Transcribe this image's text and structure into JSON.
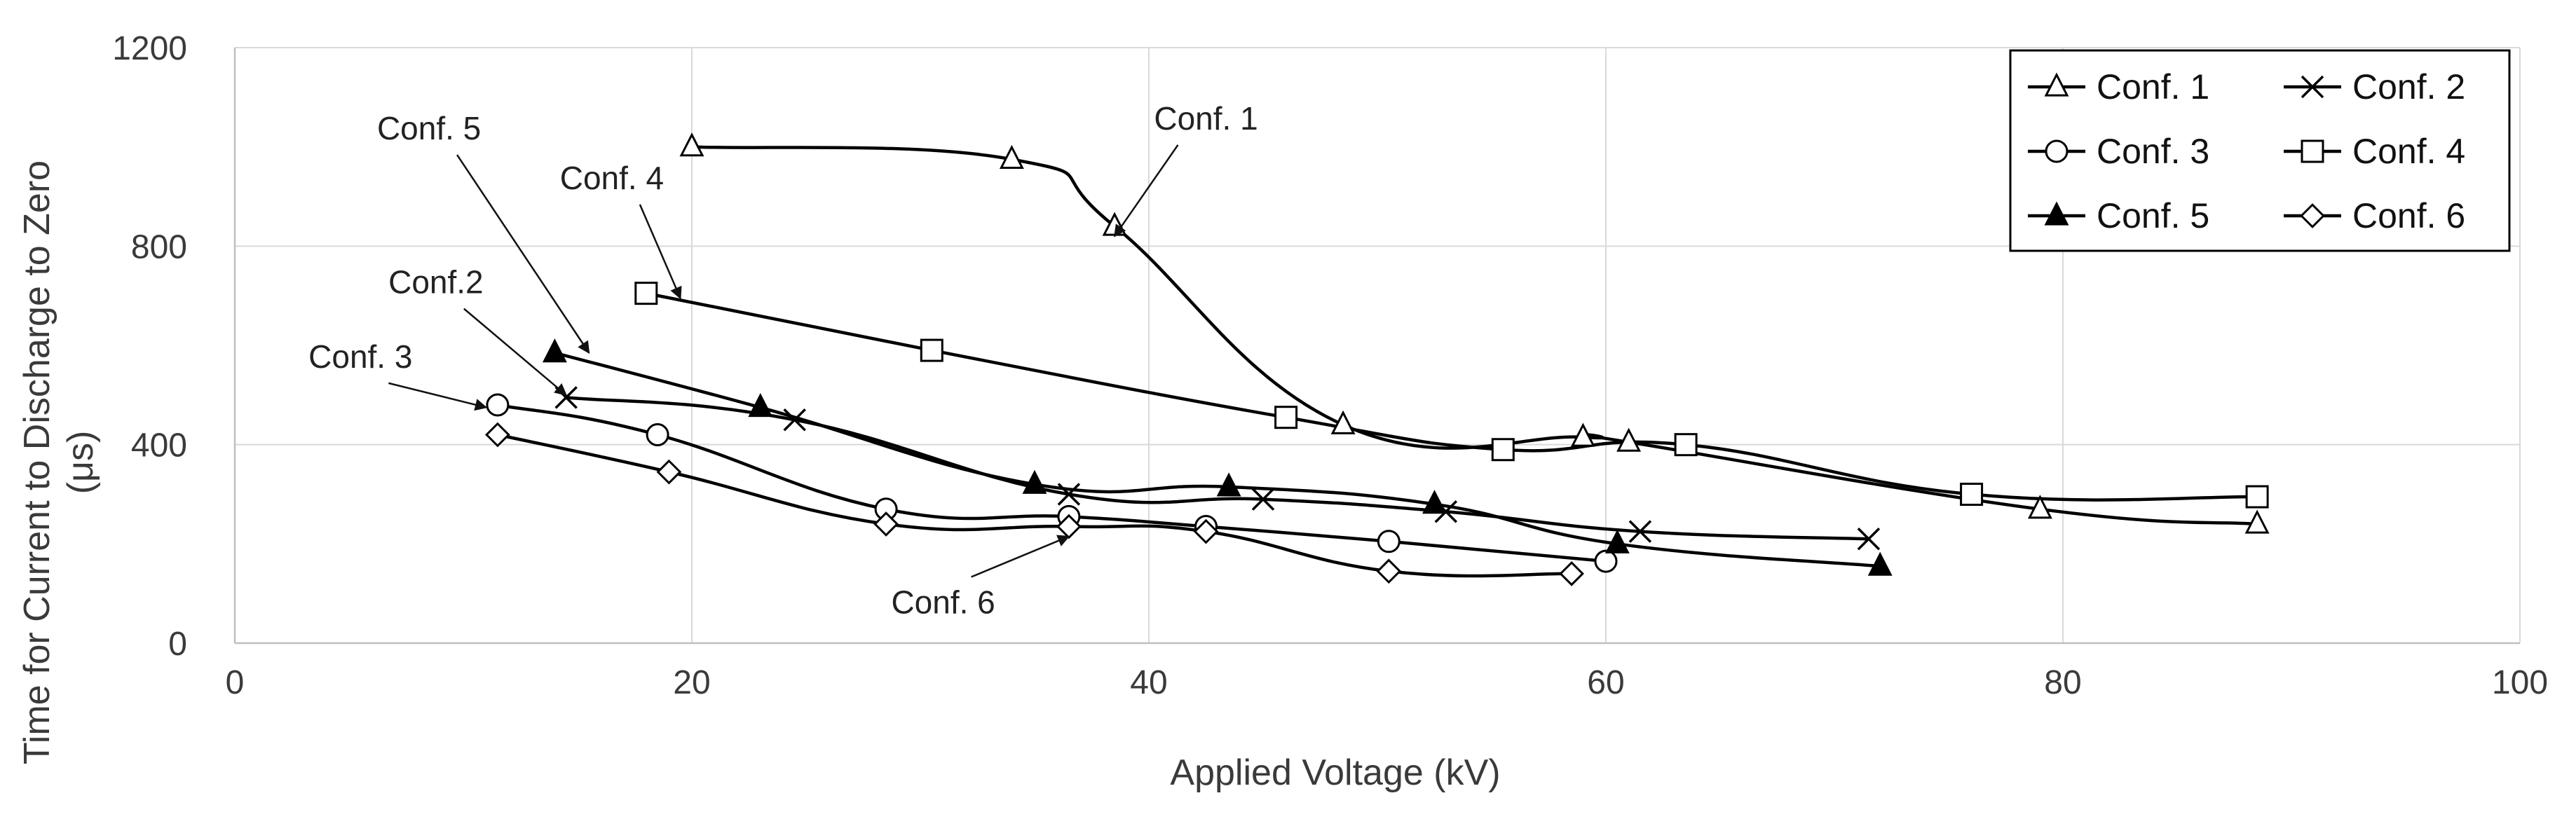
{
  "chart_data": {
    "type": "line",
    "title": "",
    "xlabel": "Applied Voltage (kV)",
    "ylabel": "Time for Current to Discharge to Zero",
    "ylabel_unit": "(μs)",
    "xlim": [
      0,
      100
    ],
    "ylim": [
      0,
      1200
    ],
    "x_ticks": [
      "0",
      "20",
      "40",
      "60",
      "80",
      "100"
    ],
    "y_ticks": [
      "0",
      "400",
      "800",
      "1200"
    ],
    "grid": true,
    "legend_position": "top-right",
    "series": [
      {
        "name": "Conf. 1",
        "marker": "triangle-open",
        "x": [
          20,
          34,
          38.5,
          48.5,
          59,
          61,
          79,
          88.5
        ],
        "y": [
          1000,
          975,
          840,
          440,
          415,
          405,
          270,
          240
        ]
      },
      {
        "name": "Conf. 2",
        "marker": "x",
        "x": [
          14.5,
          24.5,
          36.5,
          45,
          53,
          61.5,
          71.5
        ],
        "y": [
          495,
          450,
          300,
          290,
          265,
          225,
          210
        ]
      },
      {
        "name": "Conf. 3",
        "marker": "circle-open",
        "x": [
          11.5,
          18.5,
          28.5,
          36.5,
          42.5,
          50.5,
          60
        ],
        "y": [
          480,
          420,
          270,
          255,
          235,
          205,
          165
        ]
      },
      {
        "name": "Conf. 4",
        "marker": "square-open",
        "x": [
          18,
          30.5,
          46,
          55.5,
          63.5,
          76,
          88.5
        ],
        "y": [
          705,
          590,
          455,
          390,
          400,
          300,
          295
        ]
      },
      {
        "name": "Conf. 5",
        "marker": "triangle-filled",
        "x": [
          14,
          23,
          35,
          43.5,
          52.5,
          60.5,
          72
        ],
        "y": [
          585,
          475,
          320,
          315,
          280,
          200,
          155
        ]
      },
      {
        "name": "Conf. 6",
        "marker": "diamond-open",
        "x": [
          11.5,
          19,
          28.5,
          36.5,
          42.5,
          50.5,
          58.5
        ],
        "y": [
          420,
          345,
          240,
          235,
          225,
          145,
          140
        ]
      }
    ],
    "annotations": [
      {
        "text": "Conf. 1",
        "label_at": [
          42.5,
          1035
        ],
        "arrow_to": [
          38.5,
          820
        ]
      },
      {
        "text": "Conf. 5",
        "label_at": [
          8.5,
          1015
        ],
        "arrow_to": [
          15.5,
          585
        ]
      },
      {
        "text": "Conf. 4",
        "label_at": [
          16.5,
          915
        ],
        "arrow_to": [
          19.5,
          695
        ]
      },
      {
        "text": "Conf.2",
        "label_at": [
          8.8,
          705
        ],
        "arrow_to": [
          14.5,
          500
        ]
      },
      {
        "text": "Conf. 3",
        "label_at": [
          5.5,
          555
        ],
        "arrow_to": [
          11,
          475
        ]
      },
      {
        "text": "Conf. 6",
        "label_at": [
          31,
          60
        ],
        "arrow_to": [
          36.5,
          215
        ]
      }
    ]
  }
}
